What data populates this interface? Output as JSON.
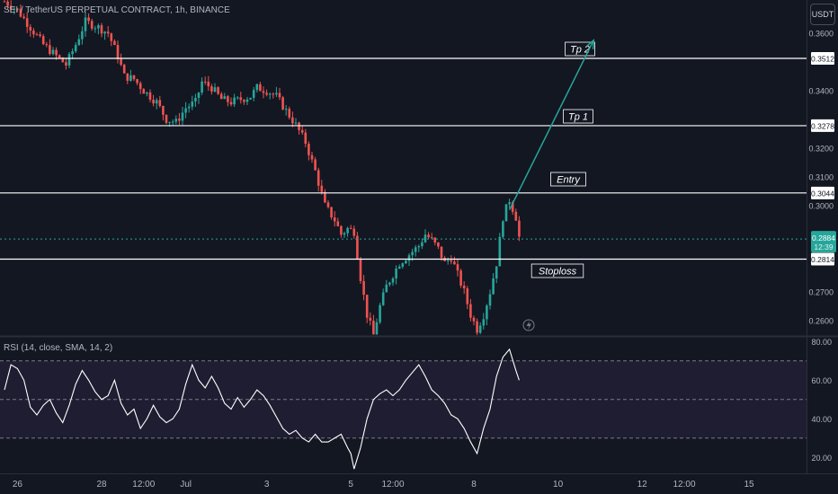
{
  "symbol_title": "SEI / TetherUS PERPETUAL CONTRACT, 1h, BINANCE",
  "currency": "USDT",
  "rsi_title": "RSI (14, close, SMA, 14, 2)",
  "colors": {
    "background": "#131722",
    "up": "#26a69a",
    "down": "#ef5350",
    "arrow": "#26a69a",
    "rsi_line": "#ffffff",
    "rsi_band": "#2a2240",
    "current_price_tag": "#26a69a"
  },
  "chart_data": [
    {
      "type": "candlestick",
      "price_scale": {
        "ylim": [
          0.255,
          0.3715
        ],
        "ticks": [
          {
            "label": "0.3600",
            "value": 0.36
          },
          {
            "label": "0.3400",
            "value": 0.34
          },
          {
            "label": "0.3200",
            "value": 0.32
          },
          {
            "label": "0.3100",
            "value": 0.31
          },
          {
            "label": "0.3000",
            "value": 0.3
          },
          {
            "label": "0.2700",
            "value": 0.27
          },
          {
            "label": "0.2600",
            "value": 0.26
          }
        ]
      },
      "time_axis": {
        "ticks": [
          {
            "label": "26",
            "index": 4
          },
          {
            "label": "28",
            "index": 30
          },
          {
            "label": "12:00",
            "index": 43
          },
          {
            "label": "Jul",
            "index": 56
          },
          {
            "label": "3",
            "index": 81
          },
          {
            "label": "5",
            "index": 107
          },
          {
            "label": "12:00",
            "index": 120
          },
          {
            "label": "8",
            "index": 145
          },
          {
            "label": "10",
            "index": 171
          },
          {
            "label": "12",
            "index": 197
          },
          {
            "label": "12:00",
            "index": 210
          },
          {
            "label": "15",
            "index": 230
          }
        ]
      },
      "close_path": [
        [
          0,
          0.371
        ],
        [
          4,
          0.368
        ],
        [
          8,
          0.362
        ],
        [
          12,
          0.356
        ],
        [
          16,
          0.352
        ],
        [
          19,
          0.349
        ],
        [
          22,
          0.356
        ],
        [
          25,
          0.364
        ],
        [
          29,
          0.362
        ],
        [
          32,
          0.36
        ],
        [
          35,
          0.352
        ],
        [
          37,
          0.345
        ],
        [
          40,
          0.344
        ],
        [
          43,
          0.34
        ],
        [
          47,
          0.336
        ],
        [
          50,
          0.33
        ],
        [
          53,
          0.329
        ],
        [
          56,
          0.334
        ],
        [
          59,
          0.336
        ],
        [
          61,
          0.343
        ],
        [
          64,
          0.341
        ],
        [
          67,
          0.337
        ],
        [
          70,
          0.336
        ],
        [
          73,
          0.337
        ],
        [
          76,
          0.338
        ],
        [
          78,
          0.341
        ],
        [
          81,
          0.34
        ],
        [
          84,
          0.338
        ],
        [
          87,
          0.333
        ],
        [
          90,
          0.328
        ],
        [
          93,
          0.322
        ],
        [
          96,
          0.312
        ],
        [
          99,
          0.3
        ],
        [
          102,
          0.295
        ],
        [
          104,
          0.29
        ],
        [
          106,
          0.292
        ],
        [
          108,
          0.291
        ],
        [
          110,
          0.275
        ],
        [
          112,
          0.262
        ],
        [
          114,
          0.255
        ],
        [
          116,
          0.265
        ],
        [
          118,
          0.272
        ],
        [
          120,
          0.276
        ],
        [
          122,
          0.28
        ],
        [
          124,
          0.282
        ],
        [
          126,
          0.284
        ],
        [
          128,
          0.286
        ],
        [
          130,
          0.29
        ],
        [
          132,
          0.288
        ],
        [
          134,
          0.285
        ],
        [
          136,
          0.28
        ],
        [
          138,
          0.282
        ],
        [
          140,
          0.276
        ],
        [
          142,
          0.27
        ],
        [
          144,
          0.262
        ],
        [
          146,
          0.257
        ],
        [
          148,
          0.262
        ],
        [
          150,
          0.27
        ],
        [
          152,
          0.28
        ],
        [
          154,
          0.296
        ],
        [
          156,
          0.302
        ],
        [
          158,
          0.296
        ],
        [
          159,
          0.289
        ]
      ],
      "levels": [
        {
          "name": "Tp 2",
          "price": 0.3512,
          "label": "0.3512"
        },
        {
          "name": "Tp 1",
          "price": 0.3278,
          "label": "0.3278"
        },
        {
          "name": "Entry",
          "price": 0.3044,
          "label": "0.3044"
        },
        {
          "name": "Stoploss",
          "price": 0.2814,
          "label": "0.2814"
        }
      ],
      "current_price": {
        "price": 0.2884,
        "label": "0.2884",
        "countdown": "12:39"
      },
      "projection_arrow": {
        "from": {
          "index": 156,
          "price": 0.2985
        },
        "to": {
          "index": 182,
          "price": 0.3575
        }
      }
    },
    {
      "type": "line",
      "name": "RSI (14, close, SMA, 14, 2)",
      "ylim": [
        15,
        82
      ],
      "ticks": [
        {
          "label": "80.00",
          "value": 80
        },
        {
          "label": "60.00",
          "value": 60
        },
        {
          "label": "40.00",
          "value": 40
        },
        {
          "label": "20.00",
          "value": 20
        }
      ],
      "bands": {
        "upper": 70,
        "middle": 50,
        "lower": 30
      },
      "path": [
        [
          0,
          55
        ],
        [
          2,
          68
        ],
        [
          4,
          66
        ],
        [
          6,
          60
        ],
        [
          8,
          46
        ],
        [
          10,
          42
        ],
        [
          12,
          47
        ],
        [
          14,
          50
        ],
        [
          16,
          43
        ],
        [
          18,
          38
        ],
        [
          20,
          47
        ],
        [
          22,
          58
        ],
        [
          24,
          65
        ],
        [
          26,
          60
        ],
        [
          28,
          54
        ],
        [
          30,
          50
        ],
        [
          32,
          52
        ],
        [
          34,
          60
        ],
        [
          36,
          48
        ],
        [
          38,
          42
        ],
        [
          40,
          45
        ],
        [
          42,
          35
        ],
        [
          44,
          40
        ],
        [
          46,
          47
        ],
        [
          48,
          41
        ],
        [
          50,
          38
        ],
        [
          52,
          40
        ],
        [
          54,
          45
        ],
        [
          56,
          58
        ],
        [
          58,
          68
        ],
        [
          60,
          60
        ],
        [
          62,
          56
        ],
        [
          64,
          62
        ],
        [
          66,
          56
        ],
        [
          68,
          48
        ],
        [
          70,
          45
        ],
        [
          72,
          51
        ],
        [
          74,
          46
        ],
        [
          76,
          50
        ],
        [
          78,
          55
        ],
        [
          80,
          52
        ],
        [
          82,
          47
        ],
        [
          84,
          41
        ],
        [
          86,
          35
        ],
        [
          88,
          32
        ],
        [
          90,
          34
        ],
        [
          92,
          30
        ],
        [
          94,
          28
        ],
        [
          96,
          32
        ],
        [
          98,
          28
        ],
        [
          100,
          28
        ],
        [
          102,
          30
        ],
        [
          104,
          32
        ],
        [
          106,
          25
        ],
        [
          107,
          22
        ],
        [
          108,
          14
        ],
        [
          110,
          25
        ],
        [
          112,
          40
        ],
        [
          114,
          50
        ],
        [
          116,
          53
        ],
        [
          118,
          55
        ],
        [
          120,
          52
        ],
        [
          122,
          55
        ],
        [
          124,
          60
        ],
        [
          126,
          64
        ],
        [
          128,
          68
        ],
        [
          130,
          62
        ],
        [
          132,
          55
        ],
        [
          134,
          52
        ],
        [
          136,
          48
        ],
        [
          138,
          42
        ],
        [
          140,
          40
        ],
        [
          142,
          35
        ],
        [
          144,
          28
        ],
        [
          146,
          22
        ],
        [
          148,
          35
        ],
        [
          150,
          45
        ],
        [
          152,
          62
        ],
        [
          154,
          72
        ],
        [
          156,
          76
        ],
        [
          158,
          65
        ],
        [
          159,
          60
        ]
      ]
    }
  ]
}
